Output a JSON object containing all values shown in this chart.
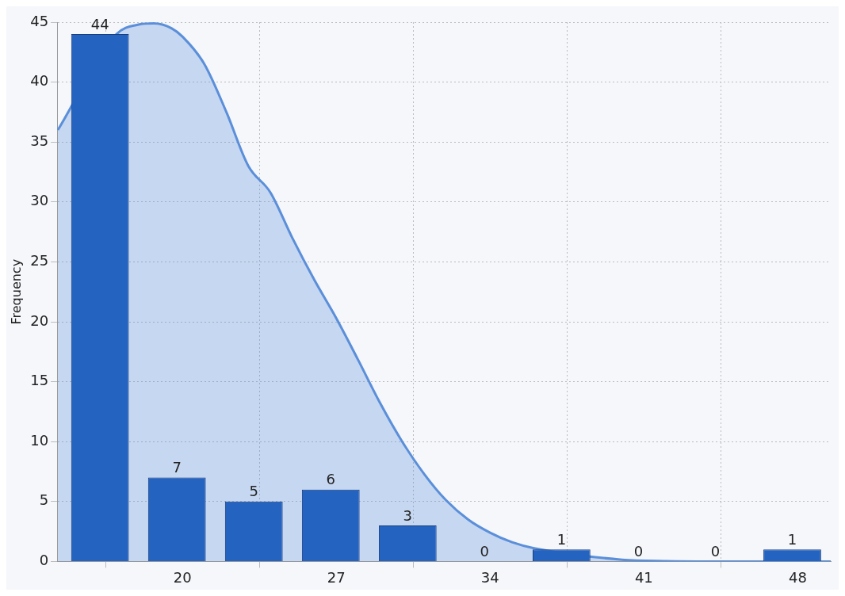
{
  "chart_data": {
    "type": "histogram",
    "ylabel": "Frequency",
    "bins": [
      14.5,
      18,
      21.5,
      25,
      28.5,
      32,
      35.5,
      39,
      42.5,
      46,
      49.5
    ],
    "values": [
      44,
      7,
      5,
      6,
      3,
      0,
      1,
      0,
      0,
      1
    ],
    "color": "#2563c0",
    "value_labels": [
      "44",
      "7",
      "5",
      "6",
      "3",
      "0",
      "1",
      "0",
      "0",
      "1"
    ],
    "series": [
      {
        "type": "area",
        "color": "#5b8fd9",
        "x": [
          14.33,
          15,
          16,
          17,
          18,
          18.7,
          19.5,
          20,
          21,
          22,
          23,
          24,
          25,
          26,
          27,
          28,
          29,
          30,
          31,
          32,
          33,
          34,
          35,
          36,
          37,
          38,
          40,
          42,
          44,
          49.5
        ],
        "values": [
          36,
          null,
          null,
          44,
          44.8,
          44.9,
          44.5,
          43.8,
          41.5,
          37.5,
          33,
          30.8,
          27,
          23.5,
          20.3,
          16.8,
          13.2,
          10,
          7.3,
          5.1,
          3.5,
          2.4,
          1.6,
          1.1,
          null,
          null,
          0.15,
          0.03,
          0,
          0
        ]
      }
    ],
    "xlim": [
      14.3,
      49.5
    ],
    "xticks": [
      20,
      27,
      34,
      41,
      48
    ],
    "ylim": [
      0,
      45
    ],
    "yticks": [
      0,
      5,
      10,
      15,
      20,
      25,
      30,
      35,
      40,
      45
    ],
    "grid": true,
    "legend": false
  }
}
